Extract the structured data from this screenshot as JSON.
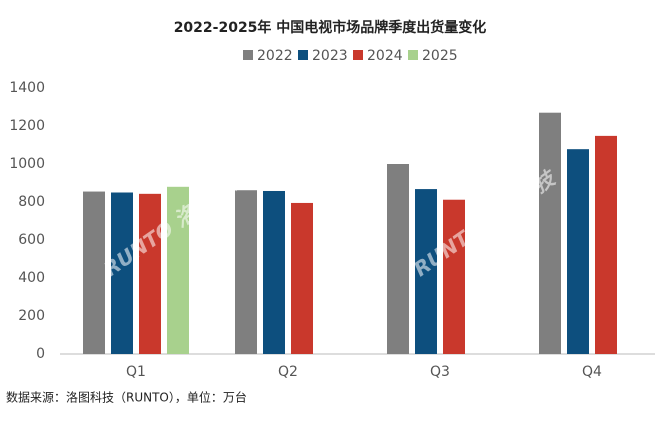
{
  "chart_data": {
    "type": "bar",
    "title": "2022-2025年 中国电视市场品牌季度出货量变化",
    "categories": [
      "Q1",
      "Q2",
      "Q3",
      "Q4"
    ],
    "series": [
      {
        "name": "2022",
        "color": "#7f7f7f",
        "values": [
          855,
          862,
          1000,
          1270
        ]
      },
      {
        "name": "2023",
        "color": "#0d4f7e",
        "values": [
          850,
          858,
          868,
          1078
        ]
      },
      {
        "name": "2024",
        "color": "#c9382c",
        "values": [
          843,
          795,
          812,
          1148
        ]
      },
      {
        "name": "2025",
        "color": "#a8d18d",
        "values": [
          880,
          null,
          null,
          null
        ]
      }
    ],
    "ylim": [
      0,
      1400
    ],
    "yticks": [
      0,
      200,
      400,
      600,
      800,
      1000,
      1200,
      1400
    ],
    "grid": false,
    "watermark": "RUNTO 洛图科技",
    "source": "数据来源：洛图科技（RUNTO），单位：万台"
  }
}
